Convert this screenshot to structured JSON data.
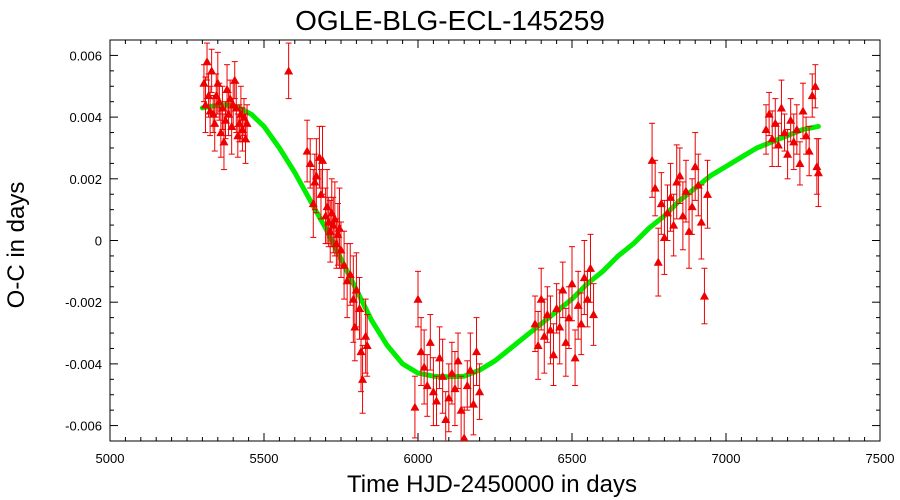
{
  "chart_data": {
    "type": "scatter",
    "title": "OGLE-BLG-ECL-145259",
    "xlabel": "Time HJD-2450000 in days",
    "ylabel": "O-C in days",
    "xlim": [
      5000,
      7500
    ],
    "ylim": [
      -0.0065,
      0.0065
    ],
    "xticks": [
      5000,
      5500,
      6000,
      6500,
      7000,
      7500
    ],
    "yticks": [
      -0.006,
      -0.004,
      -0.002,
      0,
      0.002,
      0.004,
      0.006
    ],
    "ytick_labels": [
      "-0.006",
      "-0.004",
      "-0.002",
      "0",
      "0.002",
      "0.004",
      "0.006"
    ],
    "grid": false,
    "legend": false,
    "colors": {
      "points": "#ee0000",
      "fit": "#00ee00"
    },
    "series": [
      {
        "type": "scatter-errorbar",
        "marker": "triangle",
        "x": [
          5305,
          5310,
          5315,
          5320,
          5325,
          5330,
          5335,
          5340,
          5345,
          5350,
          5355,
          5360,
          5365,
          5370,
          5375,
          5380,
          5385,
          5390,
          5395,
          5400,
          5405,
          5410,
          5415,
          5420,
          5425,
          5430,
          5435,
          5440,
          5445,
          5580,
          5640,
          5650,
          5660,
          5665,
          5670,
          5680,
          5685,
          5690,
          5700,
          5705,
          5710,
          5715,
          5720,
          5725,
          5730,
          5735,
          5740,
          5745,
          5750,
          5760,
          5770,
          5780,
          5790,
          5795,
          5800,
          5810,
          5815,
          5820,
          5830,
          5835,
          5990,
          6000,
          6010,
          6020,
          6030,
          6040,
          6050,
          6060,
          6070,
          6080,
          6090,
          6100,
          6110,
          6120,
          6130,
          6140,
          6150,
          6160,
          6170,
          6180,
          6190,
          6200,
          6380,
          6390,
          6400,
          6410,
          6420,
          6430,
          6440,
          6450,
          6460,
          6470,
          6480,
          6490,
          6500,
          6510,
          6520,
          6530,
          6540,
          6550,
          6560,
          6570,
          6760,
          6770,
          6780,
          6790,
          6800,
          6810,
          6820,
          6830,
          6840,
          6850,
          6860,
          6870,
          6880,
          6890,
          6900,
          6910,
          6920,
          6930,
          6940,
          7130,
          7140,
          7150,
          7160,
          7170,
          7180,
          7190,
          7200,
          7210,
          7220,
          7230,
          7240,
          7250,
          7260,
          7270,
          7280,
          7290,
          7295,
          7300
        ],
        "y": [
          0.0051,
          0.0044,
          0.0058,
          0.0047,
          0.0042,
          0.0055,
          0.0041,
          0.0038,
          0.0047,
          0.0051,
          0.0045,
          0.0035,
          0.0043,
          0.0032,
          0.0039,
          0.0049,
          0.0041,
          0.0046,
          0.0037,
          0.0044,
          0.0052,
          0.0043,
          0.0034,
          0.0038,
          0.0041,
          0.0036,
          0.004,
          0.0033,
          0.0038,
          0.0055,
          0.0029,
          0.0025,
          0.0012,
          0.0019,
          0.0021,
          0.0027,
          0.0015,
          0.0026,
          0.0008,
          0.0011,
          0.0006,
          0.0003,
          0.0009,
          0.0005,
          0.0007,
          -0.0001,
          0.0002,
          0.0004,
          -0.0003,
          -0.0008,
          -0.0013,
          -0.0011,
          -0.0019,
          -0.0028,
          -0.0016,
          -0.0022,
          -0.0036,
          -0.0045,
          -0.0031,
          -0.0034,
          -0.0054,
          -0.0019,
          -0.0036,
          -0.0041,
          -0.0047,
          -0.0033,
          -0.0049,
          -0.0052,
          -0.0038,
          -0.0044,
          -0.0058,
          -0.0051,
          -0.0043,
          -0.0048,
          -0.0039,
          -0.0055,
          -0.0064,
          -0.0047,
          -0.0042,
          -0.0053,
          -0.0036,
          -0.0049,
          -0.0027,
          -0.0034,
          -0.0019,
          -0.0031,
          -0.0024,
          -0.0029,
          -0.0037,
          -0.0022,
          -0.0028,
          -0.0016,
          -0.0033,
          -0.0025,
          -0.0014,
          -0.0038,
          -0.0021,
          -0.0027,
          -0.0012,
          -0.0019,
          -0.0009,
          -0.0024,
          0.0026,
          0.0017,
          -0.0007,
          0.0012,
          0.0001,
          0.0009,
          0.0014,
          0.0005,
          0.0019,
          0.0021,
          0.0008,
          0.0016,
          0.0003,
          0.0011,
          0.0024,
          0.0018,
          0.0006,
          -0.0018,
          0.0015,
          0.0036,
          0.0041,
          0.0033,
          0.0038,
          0.0031,
          0.0043,
          0.0035,
          0.0028,
          0.0039,
          0.0032,
          0.0036,
          0.0025,
          0.0042,
          0.0034,
          0.0029,
          0.0047,
          0.005,
          0.0024,
          0.0022
        ],
        "err": [
          0.0006,
          0.0009,
          0.0006,
          0.0007,
          0.0008,
          0.0007,
          0.0006,
          0.0009,
          0.0007,
          0.001,
          0.0006,
          0.0008,
          0.0007,
          0.0009,
          0.0006,
          0.0008,
          0.0007,
          0.0006,
          0.0009,
          0.0007,
          0.0006,
          0.0008,
          0.0007,
          0.0006,
          0.0009,
          0.0007,
          0.0006,
          0.0008,
          0.0006,
          0.0009,
          0.001,
          0.0008,
          0.0011,
          0.0009,
          0.0012,
          0.001,
          0.0008,
          0.0011,
          0.0009,
          0.0012,
          0.0008,
          0.001,
          0.0011,
          0.0009,
          0.0012,
          0.0008,
          0.001,
          0.0013,
          0.0009,
          0.0011,
          0.0012,
          0.001,
          0.0014,
          0.0011,
          0.0012,
          0.001,
          0.0013,
          0.0011,
          0.0012,
          0.001,
          0.001,
          0.0009,
          0.0011,
          0.0012,
          0.001,
          0.0009,
          0.0011,
          0.0008,
          0.001,
          0.0012,
          0.0009,
          0.0011,
          0.001,
          0.0012,
          0.0009,
          0.0011,
          0.001,
          0.0008,
          0.0012,
          0.001,
          0.0011,
          0.0009,
          0.0009,
          0.0011,
          0.001,
          0.0012,
          0.0009,
          0.0011,
          0.001,
          0.0008,
          0.0012,
          0.0009,
          0.0011,
          0.001,
          0.0012,
          0.0009,
          0.0011,
          0.001,
          0.0012,
          0.0009,
          0.0011,
          0.001,
          0.0012,
          0.0009,
          0.0011,
          0.001,
          0.0012,
          0.0009,
          0.0011,
          0.001,
          0.0012,
          0.0009,
          0.0011,
          0.001,
          0.0012,
          0.0009,
          0.0011,
          0.001,
          0.0012,
          0.0009,
          0.0011,
          0.0008,
          0.0007,
          0.0009,
          0.0008,
          0.0007,
          0.0009,
          0.0006,
          0.0008,
          0.0007,
          0.0009,
          0.0008,
          0.0007,
          0.0009,
          0.0006,
          0.0008,
          0.0007,
          0.0007,
          0.0009,
          0.0011
        ]
      },
      {
        "type": "fit-line",
        "x": [
          5300,
          5330,
          5360,
          5390,
          5420,
          5460,
          5500,
          5550,
          5600,
          5650,
          5700,
          5750,
          5800,
          5850,
          5900,
          5950,
          6000,
          6050,
          6100,
          6150,
          6200,
          6250,
          6300,
          6350,
          6400,
          6450,
          6500,
          6550,
          6600,
          6650,
          6700,
          6750,
          6800,
          6850,
          6900,
          6950,
          7000,
          7050,
          7100,
          7150,
          7200,
          7250,
          7300
        ],
        "y": [
          0.0043,
          0.00435,
          0.0044,
          0.00438,
          0.0043,
          0.00408,
          0.0037,
          0.003,
          0.0022,
          0.0013,
          0.0004,
          -0.0006,
          -0.0016,
          -0.0026,
          -0.0034,
          -0.004,
          -0.0043,
          -0.0044,
          -0.00442,
          -0.0044,
          -0.0042,
          -0.0039,
          -0.0035,
          -0.0031,
          -0.0027,
          -0.0023,
          -0.0019,
          -0.0014,
          -0.001,
          -0.0005,
          -0.0001,
          0.0004,
          0.0008,
          0.0013,
          0.0017,
          0.0021,
          0.0024,
          0.0027,
          0.003,
          0.0032,
          0.0034,
          0.0036,
          0.0037
        ]
      }
    ]
  }
}
